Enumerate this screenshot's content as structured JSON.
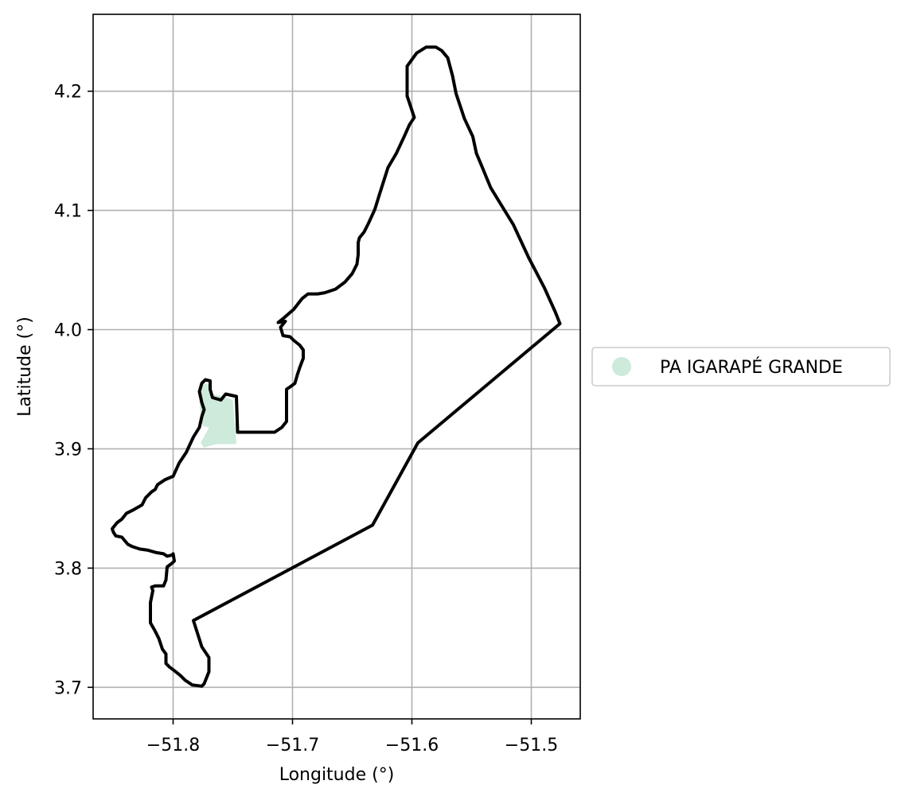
{
  "chart_data": {
    "type": "map",
    "xlabel": "Longitude (°)",
    "ylabel": "Latitude (°)",
    "xlim": [
      -51.867,
      -51.459
    ],
    "ylim": [
      3.6735,
      4.2645
    ],
    "x_ticks": [
      -51.8,
      -51.7,
      -51.6,
      -51.5
    ],
    "x_tick_labels": [
      "−51.8",
      "−51.7",
      "−51.6",
      "−51.5"
    ],
    "y_ticks": [
      3.7,
      3.8,
      3.9,
      4.0,
      4.1,
      4.2
    ],
    "y_tick_labels": [
      "3.7",
      "3.8",
      "3.9",
      "4.0",
      "4.1",
      "4.2"
    ],
    "grid": true,
    "legend_position": "right",
    "legend": [
      {
        "label": "PA IGARAPÉ GRANDE",
        "color": "#cdeadb"
      }
    ],
    "outline_color": "#000000",
    "boundary": [
      [
        -51.598,
        4.178
      ],
      [
        -51.604,
        4.196
      ],
      [
        -51.604,
        4.221
      ],
      [
        -51.596,
        4.232
      ],
      [
        -51.588,
        4.237
      ],
      [
        -51.58,
        4.237
      ],
      [
        -51.575,
        4.234
      ],
      [
        -51.57,
        4.228
      ],
      [
        -51.566,
        4.213
      ],
      [
        -51.563,
        4.198
      ],
      [
        -51.556,
        4.177
      ],
      [
        -51.549,
        4.162
      ],
      [
        -51.546,
        4.148
      ],
      [
        -51.541,
        4.136
      ],
      [
        -51.534,
        4.119
      ],
      [
        -51.515,
        4.088
      ],
      [
        -51.502,
        4.06
      ],
      [
        -51.489,
        4.035
      ],
      [
        -51.48,
        4.015
      ],
      [
        -51.476,
        4.005
      ],
      [
        -51.595,
        3.905
      ],
      [
        -51.633,
        3.836
      ],
      [
        -51.783,
        3.756
      ],
      [
        -51.776,
        3.734
      ],
      [
        -51.77,
        3.725
      ],
      [
        -51.77,
        3.713
      ],
      [
        -51.774,
        3.703
      ],
      [
        -51.776,
        3.701
      ],
      [
        -51.784,
        3.702
      ],
      [
        -51.79,
        3.706
      ],
      [
        -51.794,
        3.71
      ],
      [
        -51.799,
        3.714
      ],
      [
        -51.803,
        3.717
      ],
      [
        -51.806,
        3.72
      ],
      [
        -51.806,
        3.728
      ],
      [
        -51.809,
        3.732
      ],
      [
        -51.812,
        3.741
      ],
      [
        -51.815,
        3.747
      ],
      [
        -51.819,
        3.754
      ],
      [
        -51.819,
        3.771
      ],
      [
        -51.817,
        3.781
      ],
      [
        -51.818,
        3.784
      ],
      [
        -51.815,
        3.785
      ],
      [
        -51.808,
        3.785
      ],
      [
        -51.806,
        3.79
      ],
      [
        -51.805,
        3.801
      ],
      [
        -51.801,
        3.804
      ],
      [
        -51.799,
        3.806
      ],
      [
        -51.8,
        3.812
      ],
      [
        -51.801,
        3.811
      ],
      [
        -51.805,
        3.81
      ],
      [
        -51.808,
        3.812
      ],
      [
        -51.814,
        3.813
      ],
      [
        -51.821,
        3.815
      ],
      [
        -51.828,
        3.816
      ],
      [
        -51.834,
        3.818
      ],
      [
        -51.838,
        3.82
      ],
      [
        -51.843,
        3.826
      ],
      [
        -51.848,
        3.827
      ],
      [
        -51.85,
        3.83
      ],
      [
        -51.851,
        3.833
      ],
      [
        -51.847,
        3.838
      ],
      [
        -51.843,
        3.841
      ],
      [
        -51.839,
        3.846
      ],
      [
        -51.833,
        3.849
      ],
      [
        -51.826,
        3.853
      ],
      [
        -51.823,
        3.859
      ],
      [
        -51.818,
        3.864
      ],
      [
        -51.815,
        3.866
      ],
      [
        -51.813,
        3.87
      ],
      [
        -51.807,
        3.874
      ],
      [
        -51.8,
        3.877
      ],
      [
        -51.795,
        3.888
      ],
      [
        -51.789,
        3.897
      ],
      [
        -51.783,
        3.91
      ],
      [
        -51.778,
        3.918
      ],
      [
        -51.776,
        3.927
      ],
      [
        -51.774,
        3.933
      ],
      [
        -51.776,
        3.939
      ],
      [
        -51.778,
        3.948
      ],
      [
        -51.776,
        3.955
      ],
      [
        -51.773,
        3.958
      ],
      [
        -51.769,
        3.957
      ],
      [
        -51.769,
        3.95
      ],
      [
        -51.767,
        3.943
      ],
      [
        -51.76,
        3.941
      ],
      [
        -51.756,
        3.946
      ],
      [
        -51.747,
        3.944
      ],
      [
        -51.746,
        3.914
      ],
      [
        -51.715,
        3.914
      ],
      [
        -51.709,
        3.918
      ],
      [
        -51.705,
        3.923
      ],
      [
        -51.705,
        3.936
      ],
      [
        -51.705,
        3.95
      ],
      [
        -51.702,
        3.952
      ],
      [
        -51.698,
        3.955
      ],
      [
        -51.696,
        3.962
      ],
      [
        -51.694,
        3.968
      ],
      [
        -51.691,
        3.976
      ],
      [
        -51.691,
        3.983
      ],
      [
        -51.694,
        3.987
      ],
      [
        -51.699,
        3.991
      ],
      [
        -51.702,
        3.994
      ],
      [
        -51.708,
        3.995
      ],
      [
        -51.71,
        4.002
      ],
      [
        -51.706,
        4.007
      ],
      [
        -51.712,
        4.006
      ],
      [
        -51.707,
        4.01
      ],
      [
        -51.699,
        4.017
      ],
      [
        -51.692,
        4.026
      ],
      [
        -51.687,
        4.03
      ],
      [
        -51.679,
        4.03
      ],
      [
        -51.673,
        4.031
      ],
      [
        -51.664,
        4.034
      ],
      [
        -51.656,
        4.04
      ],
      [
        -51.65,
        4.047
      ],
      [
        -51.646,
        4.055
      ],
      [
        -51.645,
        4.063
      ],
      [
        -51.645,
        4.073
      ],
      [
        -51.644,
        4.077
      ],
      [
        -51.64,
        4.082
      ],
      [
        -51.636,
        4.09
      ],
      [
        -51.631,
        4.101
      ],
      [
        -51.627,
        4.114
      ],
      [
        -51.62,
        4.136
      ],
      [
        -51.613,
        4.148
      ],
      [
        -51.606,
        4.163
      ],
      [
        -51.602,
        4.172
      ],
      [
        -51.598,
        4.178
      ]
    ],
    "region": {
      "name": "PA IGARAPÉ GRANDE",
      "polygon": [
        [
          -51.775,
          3.955
        ],
        [
          -51.769,
          3.954
        ],
        [
          -51.767,
          3.946
        ],
        [
          -51.758,
          3.944
        ],
        [
          -51.75,
          3.941
        ],
        [
          -51.748,
          3.918
        ],
        [
          -51.747,
          3.904
        ],
        [
          -51.764,
          3.904
        ],
        [
          -51.774,
          3.901
        ],
        [
          -51.777,
          3.905
        ],
        [
          -51.772,
          3.914
        ],
        [
          -51.77,
          3.918
        ],
        [
          -51.775,
          3.919
        ],
        [
          -51.777,
          3.927
        ],
        [
          -51.778,
          3.94
        ]
      ]
    }
  }
}
